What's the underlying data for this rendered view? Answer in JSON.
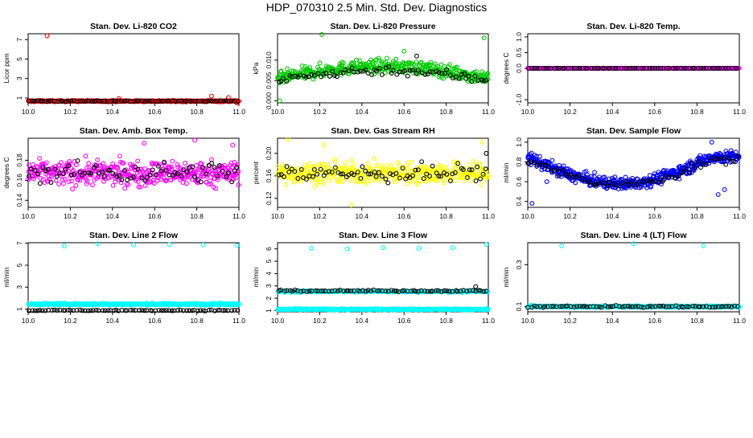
{
  "page": {
    "title": "HDP_070310  2.5 Min. Std. Dev. Diagnostics"
  },
  "chart_data": [
    {
      "type": "scatter",
      "title": "Stan. Dev. Li-820 CO2",
      "ylabel": "Licor ppm",
      "xlim": [
        10.0,
        11.0
      ],
      "ylim": [
        0.5,
        7.6
      ],
      "xticks": [
        "10.0",
        "10.2",
        "10.4",
        "10.6",
        "10.8",
        "11.0"
      ],
      "yticks": [
        {
          "v": 1,
          "t": "1"
        },
        {
          "v": 3,
          "t": "3"
        },
        {
          "v": 5,
          "t": "5"
        },
        {
          "v": 7,
          "t": "7"
        }
      ],
      "series": [
        {
          "color": "#ff0000",
          "style": "band",
          "n": 420,
          "base": 0.68,
          "spread": 0.07,
          "outliers": [
            [
              10.09,
              7.4
            ],
            [
              10.87,
              1.2
            ],
            [
              10.95,
              1.05
            ],
            [
              10.43,
              0.95
            ],
            [
              10.99,
              0.5
            ]
          ]
        },
        {
          "color": "#000000",
          "style": "band",
          "n": 75,
          "base": 0.68,
          "spread": 0.04,
          "outliers": []
        }
      ]
    },
    {
      "type": "scatter",
      "title": "Stan. Dev. Li-820 Pressure",
      "ylabel": "kPa",
      "xlim": [
        10.0,
        11.0
      ],
      "ylim": [
        -0.0005,
        0.0165
      ],
      "xticks": [
        "10.0",
        "10.2",
        "10.4",
        "10.6",
        "10.8",
        "11.0"
      ],
      "yticks": [
        {
          "v": 0.0,
          "t": "0.000"
        },
        {
          "v": 0.005,
          "t": "0.005"
        },
        {
          "v": 0.01,
          "t": "0.010"
        }
      ],
      "series": [
        {
          "color": "#00cc00",
          "style": "hump",
          "n": 420,
          "base": 0.0055,
          "peak": 0.0085,
          "spread": 0.0016,
          "outliers": [
            [
              10.21,
              0.0163
            ],
            [
              10.98,
              0.0155
            ],
            [
              10.01,
              0.0
            ],
            [
              10.6,
              0.0122
            ]
          ]
        },
        {
          "color": "#000000",
          "style": "hump",
          "n": 75,
          "base": 0.005,
          "peak": 0.0075,
          "spread": 0.0012,
          "outliers": [
            [
              10.66,
              0.011
            ]
          ]
        }
      ]
    },
    {
      "type": "scatter",
      "title": "Stan. Dev. Li-820 Temp.",
      "ylabel": "degrees C",
      "xlim": [
        10.0,
        11.0
      ],
      "ylim": [
        -1.1,
        1.1
      ],
      "xticks": [
        "10.0",
        "10.2",
        "10.4",
        "10.6",
        "10.8",
        "11.0"
      ],
      "yticks": [
        {
          "v": -1.0,
          "t": "-1.0"
        },
        {
          "v": 0.0,
          "t": "0.0"
        },
        {
          "v": 0.5,
          "t": "0.5"
        },
        {
          "v": 1.0,
          "t": "1.0"
        }
      ],
      "series": [
        {
          "color": "#ff00ff",
          "style": "flat",
          "n": 400,
          "base": 0.0,
          "spread": 0.0,
          "outliers": []
        },
        {
          "color": "#000000",
          "style": "flat",
          "n": 75,
          "base": 0.0,
          "spread": 0.0,
          "outliers": []
        }
      ]
    },
    {
      "type": "scatter",
      "title": "Stan. Dev. Amb. Box Temp.",
      "ylabel": "degrees C",
      "xlim": [
        10.0,
        11.0
      ],
      "ylim": [
        0.133,
        0.202
      ],
      "xticks": [
        "10.0",
        "10.2",
        "10.4",
        "10.6",
        "10.8",
        "11.0"
      ],
      "yticks": [
        {
          "v": 0.14,
          "t": "0.14"
        },
        {
          "v": 0.16,
          "t": "0.16"
        },
        {
          "v": 0.18,
          "t": "0.18"
        }
      ],
      "series": [
        {
          "color": "#ff00ff",
          "style": "noise",
          "n": 420,
          "base": 0.167,
          "spread": 0.012,
          "outliers": [
            [
              10.79,
              0.2
            ],
            [
              10.55,
              0.197
            ],
            [
              10.97,
              0.195
            ]
          ]
        },
        {
          "color": "#000000",
          "style": "noise",
          "n": 75,
          "base": 0.168,
          "spread": 0.01,
          "outliers": []
        }
      ]
    },
    {
      "type": "scatter",
      "title": "Stan. Dev. Gas Stream RH",
      "ylabel": "percent",
      "xlim": [
        10.0,
        11.0
      ],
      "ylim": [
        0.104,
        0.227
      ],
      "xticks": [
        "10.0",
        "10.2",
        "10.4",
        "10.6",
        "10.8",
        "11.0"
      ],
      "yticks": [
        {
          "v": 0.12,
          "t": "0.12"
        },
        {
          "v": 0.16,
          "t": "0.16"
        },
        {
          "v": 0.2,
          "t": "0.20"
        }
      ],
      "series": [
        {
          "color": "#ffff00",
          "style": "noise",
          "n": 420,
          "base": 0.165,
          "spread": 0.018,
          "outliers": [
            [
              10.05,
              0.225
            ],
            [
              10.35,
              0.108
            ],
            [
              10.22,
              0.215
            ],
            [
              10.97,
              0.22
            ]
          ]
        },
        {
          "color": "#000000",
          "style": "noise",
          "n": 75,
          "base": 0.164,
          "spread": 0.017,
          "outliers": [
            [
              10.99,
              0.2
            ]
          ]
        }
      ]
    },
    {
      "type": "scatter",
      "title": "Stan. Dev. Sample Flow",
      "ylabel": "ml/min",
      "xlim": [
        10.0,
        11.0
      ],
      "ylim": [
        0.34,
        1.04
      ],
      "xticks": [
        "10.0",
        "10.2",
        "10.4",
        "10.6",
        "10.8",
        "11.0"
      ],
      "yticks": [
        {
          "v": 0.4,
          "t": "0.4"
        },
        {
          "v": 0.6,
          "t": "0.6"
        },
        {
          "v": 0.8,
          "t": "0.8"
        },
        {
          "v": 1.0,
          "t": "1.0"
        }
      ],
      "series": [
        {
          "color": "#0000ff",
          "style": "valley",
          "n": 520,
          "base": 0.85,
          "peak": 0.58,
          "spread": 0.06,
          "outliers": [
            [
              10.02,
              0.38
            ],
            [
              10.87,
              1.0
            ],
            [
              10.9,
              0.47
            ],
            [
              10.93,
              0.52
            ],
            [
              10.09,
              0.6
            ]
          ]
        },
        {
          "color": "#000000",
          "style": "valley",
          "n": 75,
          "base": 0.82,
          "peak": 0.57,
          "spread": 0.04,
          "outliers": []
        }
      ]
    },
    {
      "type": "scatter",
      "title": "Stan. Dev. Line 2 Flow",
      "ylabel": "ml/min",
      "xlim": [
        10.0,
        11.0
      ],
      "ylim": [
        0.75,
        7.05
      ],
      "xticks": [
        "10.0",
        "10.2",
        "10.4",
        "10.6",
        "10.8",
        "11.0"
      ],
      "yticks": [
        {
          "v": 1,
          "t": "1"
        },
        {
          "v": 3,
          "t": "3"
        },
        {
          "v": 5,
          "t": "5"
        },
        {
          "v": 7,
          "t": "7"
        }
      ],
      "series": [
        {
          "color": "#00ffff",
          "style": "band",
          "n": 420,
          "base": 1.45,
          "spread": 0.08,
          "outliers": [
            [
              10.17,
              6.75
            ],
            [
              10.33,
              6.95
            ],
            [
              10.5,
              6.85
            ],
            [
              10.67,
              6.9
            ],
            [
              10.83,
              6.85
            ],
            [
              10.99,
              6.8
            ]
          ]
        },
        {
          "color": "#000000",
          "style": "band",
          "n": 75,
          "base": 0.88,
          "spread": 0.04,
          "outliers": []
        }
      ]
    },
    {
      "type": "scatter",
      "title": "Stan. Dev. Line 3 Flow",
      "ylabel": "ml/min",
      "xlim": [
        10.0,
        11.0
      ],
      "ylim": [
        0.9,
        6.5
      ],
      "xticks": [
        "10.0",
        "10.2",
        "10.4",
        "10.6",
        "10.8",
        "11.0"
      ],
      "yticks": [
        {
          "v": 1,
          "t": "1"
        },
        {
          "v": 2,
          "t": "2"
        },
        {
          "v": 3,
          "t": "3"
        },
        {
          "v": 4,
          "t": "4"
        },
        {
          "v": 5,
          "t": "5"
        },
        {
          "v": 6,
          "t": "6"
        }
      ],
      "series": [
        {
          "color": "#00ffff",
          "style": "band",
          "n": 420,
          "base": 1.1,
          "spread": 0.05,
          "outliers": [
            [
              10.16,
              6.05
            ],
            [
              10.33,
              6.0
            ],
            [
              10.5,
              6.1
            ],
            [
              10.67,
              6.05
            ],
            [
              10.83,
              6.1
            ],
            [
              10.99,
              6.35
            ]
          ]
        },
        {
          "color": "#00ffff",
          "style": "band",
          "n": 200,
          "base": 2.55,
          "spread": 0.07,
          "outliers": []
        },
        {
          "color": "#000000",
          "style": "band",
          "n": 75,
          "base": 2.6,
          "spread": 0.06,
          "outliers": [
            [
              10.94,
              2.95
            ]
          ]
        }
      ]
    },
    {
      "type": "scatter",
      "title": "Stan. Dev. Line 4 (LT) Flow",
      "ylabel": "ml/min",
      "xlim": [
        10.0,
        11.0
      ],
      "ylim": [
        0.075,
        0.405
      ],
      "xticks": [
        "10.0",
        "10.2",
        "10.4",
        "10.6",
        "10.8",
        "11.0"
      ],
      "yticks": [
        {
          "v": 0.1,
          "t": "0.1"
        },
        {
          "v": 0.3,
          "t": "0.3"
        }
      ],
      "series": [
        {
          "color": "#00ffff",
          "style": "band",
          "n": 420,
          "base": 0.1,
          "spread": 0.004,
          "outliers": [
            [
              10.16,
              0.39
            ],
            [
              10.5,
              0.4
            ],
            [
              10.83,
              0.39
            ]
          ]
        },
        {
          "color": "#000000",
          "style": "band",
          "n": 75,
          "base": 0.1,
          "spread": 0.004,
          "outliers": []
        }
      ]
    }
  ]
}
